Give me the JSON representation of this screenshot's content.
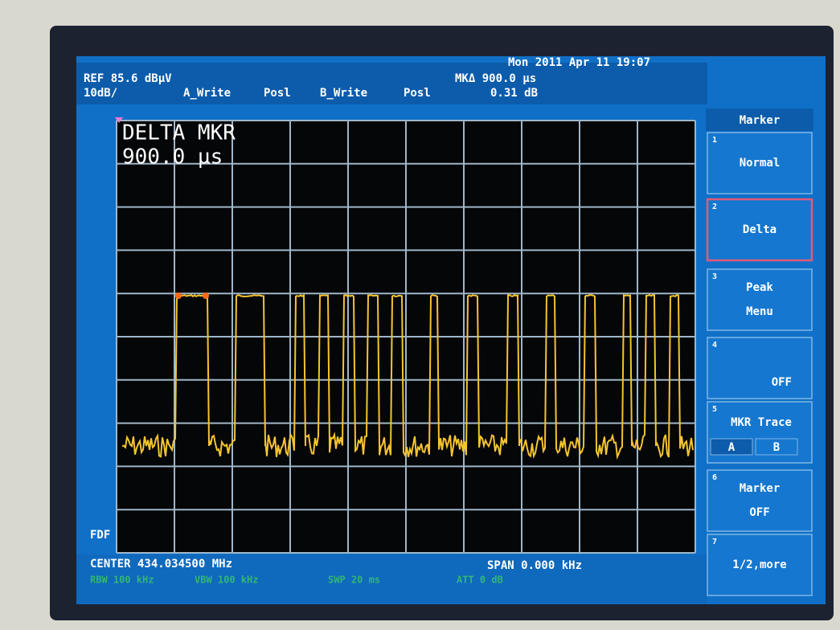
{
  "header": {
    "ref": "REF 85.6 dBµV",
    "scale": "10dB/",
    "trace_a": "A_Write",
    "trace_a_mode": "Posl",
    "trace_b": "B_Write",
    "trace_b_mode": "Posl",
    "marker_delta": "MKΔ 900.0 µs",
    "marker_delta_level": "0.31 dB",
    "datetime": "Mon 2011 Apr 11 19:07"
  },
  "display": {
    "marker_title": "DELTA MKR",
    "marker_value": "900.0 µs",
    "side_label": "FDF"
  },
  "footer": {
    "center": "CENTER 434.034500 MHz",
    "span": "SPAN 0.000 kHz",
    "settings": [
      "RBW 100 kHz",
      "VBW 100 kHz",
      "SWP 20 ms",
      "ATT 0 dB"
    ]
  },
  "softkeys": {
    "title": "Marker",
    "keys": [
      {
        "number": "1",
        "label": [
          "Normal"
        ]
      },
      {
        "number": "2",
        "label": [
          "Delta"
        ]
      },
      {
        "number": "3",
        "label": [
          "Peak",
          "Menu"
        ]
      },
      {
        "number": "4",
        "label": [
          "OFF"
        ]
      },
      {
        "number": "5",
        "label": [
          "MKR Trace"
        ],
        "options": [
          "A",
          "B"
        ]
      },
      {
        "number": "6",
        "label": [
          "Marker",
          "OFF"
        ]
      },
      {
        "number": "7",
        "label": [
          "1/2,more"
        ]
      }
    ]
  }
}
